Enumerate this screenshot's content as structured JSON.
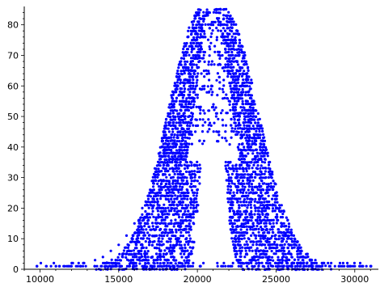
{
  "chart_data": {
    "type": "scatter",
    "title": "",
    "xlabel": "",
    "ylabel": "",
    "xlim": [
      9000,
      31500
    ],
    "ylim": [
      0,
      86
    ],
    "x_ticks": [
      10000,
      15000,
      20000,
      25000,
      30000
    ],
    "y_ticks": [
      0,
      10,
      20,
      30,
      40,
      50,
      60,
      70,
      80
    ],
    "grid": false,
    "legend": "none",
    "marker_color": "#0000ff",
    "series": [
      {
        "style": "dense-band",
        "description_points": [
          {
            "x": 9800,
            "y": 1
          },
          {
            "x": 10700,
            "y": 1
          },
          {
            "x": 11500,
            "y": 1
          },
          {
            "x": 12000,
            "y": 1
          },
          {
            "x": 12800,
            "y": 2
          },
          {
            "x": 13500,
            "y": 3
          },
          {
            "x": 14000,
            "y": 4
          },
          {
            "x": 14500,
            "y": 6
          },
          {
            "x": 15000,
            "y": 8
          },
          {
            "x": 15500,
            "y": 11
          },
          {
            "x": 16000,
            "y": 15
          },
          {
            "x": 16500,
            "y": 20
          },
          {
            "x": 17000,
            "y": 26
          },
          {
            "x": 17500,
            "y": 32
          },
          {
            "x": 18000,
            "y": 39
          },
          {
            "x": 18500,
            "y": 47
          },
          {
            "x": 19000,
            "y": 55
          },
          {
            "x": 19500,
            "y": 63
          },
          {
            "x": 20000,
            "y": 70
          },
          {
            "x": 20500,
            "y": 76
          },
          {
            "x": 21000,
            "y": 80
          },
          {
            "x": 21200,
            "y": 84
          },
          {
            "x": 21500,
            "y": 78
          },
          {
            "x": 22000,
            "y": 70
          },
          {
            "x": 22500,
            "y": 60
          },
          {
            "x": 23000,
            "y": 50
          },
          {
            "x": 23500,
            "y": 41
          },
          {
            "x": 24000,
            "y": 33
          },
          {
            "x": 24500,
            "y": 26
          },
          {
            "x": 25000,
            "y": 20
          },
          {
            "x": 25500,
            "y": 15
          },
          {
            "x": 26000,
            "y": 10
          },
          {
            "x": 26500,
            "y": 7
          },
          {
            "x": 27000,
            "y": 5
          },
          {
            "x": 27500,
            "y": 3
          },
          {
            "x": 28000,
            "y": 2
          },
          {
            "x": 28500,
            "y": 2
          },
          {
            "x": 29000,
            "y": 1
          },
          {
            "x": 30000,
            "y": 1
          },
          {
            "x": 30500,
            "y": 1
          },
          {
            "x": 31000,
            "y": 1
          }
        ]
      }
    ]
  }
}
